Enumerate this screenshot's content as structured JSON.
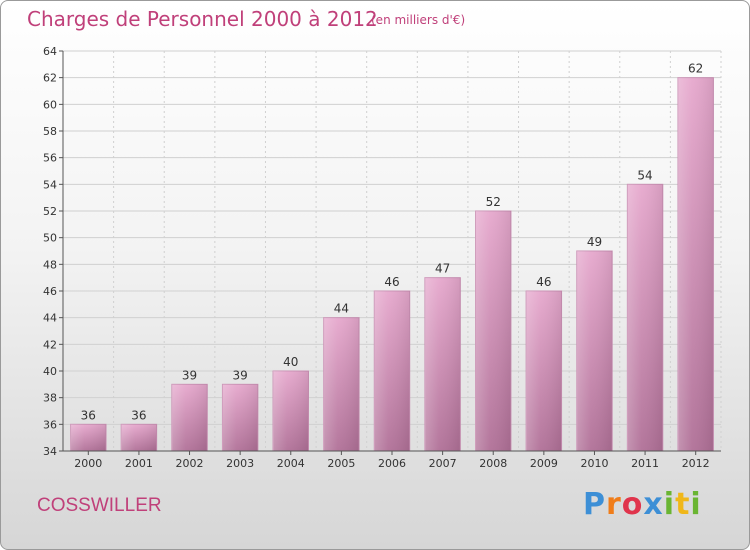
{
  "header": {
    "title": "Charges de Personnel 2000 à 2012",
    "subtitle": "(en milliers d'€)"
  },
  "footer": {
    "place": "COSSWILLER",
    "logo": "Proxiti"
  },
  "colors": {
    "title": "#c0407a",
    "bar_top": "#e6a8cd",
    "bar_bottom": "#b07097",
    "grid": "#d0d0d0"
  },
  "chart_data": {
    "type": "bar",
    "title": "Charges de Personnel 2000 à 2012",
    "subtitle": "(en milliers d'€)",
    "xlabel": "",
    "ylabel": "",
    "categories": [
      "2000",
      "2001",
      "2002",
      "2003",
      "2004",
      "2005",
      "2006",
      "2007",
      "2008",
      "2009",
      "2010",
      "2011",
      "2012"
    ],
    "values": [
      36,
      36,
      39,
      39,
      40,
      44,
      46,
      47,
      52,
      46,
      49,
      54,
      62
    ],
    "ylim": [
      34,
      64
    ],
    "yticks": [
      34,
      36,
      38,
      40,
      42,
      44,
      46,
      48,
      50,
      52,
      54,
      56,
      58,
      60,
      62,
      64
    ],
    "grid": true,
    "legend": "none"
  }
}
